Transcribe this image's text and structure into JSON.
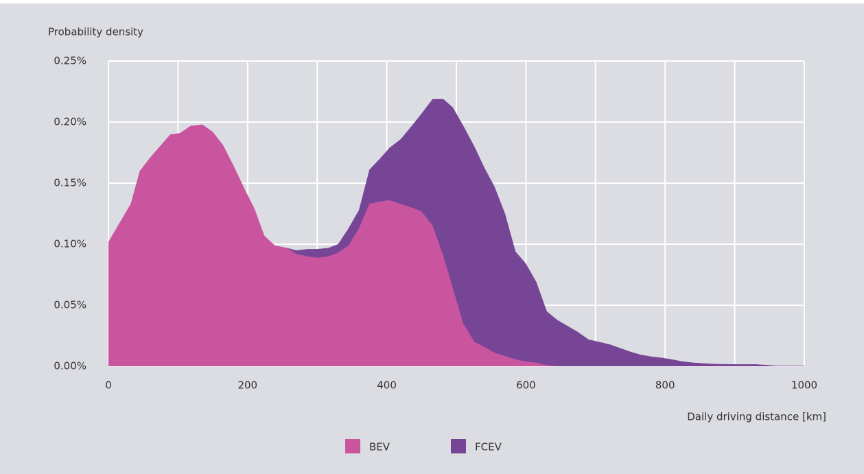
{
  "chart_data": {
    "type": "area",
    "y_label": "Probability density",
    "x_label": "Daily driving distance [km]",
    "xlim": [
      0,
      1000
    ],
    "xticks": [
      0,
      200,
      400,
      600,
      800,
      1000
    ],
    "xgrid": [
      0,
      100,
      200,
      300,
      400,
      500,
      600,
      700,
      800,
      900,
      1000
    ],
    "ylim": [
      0,
      0.25
    ],
    "yticks": [
      {
        "value": 0,
        "label": "0.00%"
      },
      {
        "value": 0.05,
        "label": "0.05%"
      },
      {
        "value": 0.1,
        "label": "0.10%"
      },
      {
        "value": 0.15,
        "label": "0.15%"
      },
      {
        "value": 0.2,
        "label": "0.20%"
      },
      {
        "value": 0.25,
        "label": "0.25%"
      }
    ],
    "grid": true,
    "legend": "bottom",
    "series": [
      {
        "name": "BEV",
        "color": "#c9559f",
        "x": [
          0,
          32,
          45,
          60,
          89,
          103,
          118,
          135,
          150,
          165,
          181,
          195,
          210,
          224,
          239,
          256,
          270,
          286,
          300,
          316,
          330,
          345,
          360,
          375,
          390,
          404,
          420,
          436,
          450,
          466,
          481,
          495,
          510,
          526,
          540,
          555,
          570,
          585,
          600,
          615,
          630,
          645
        ],
        "values": [
          0.102,
          0.133,
          0.16,
          0.171,
          0.19,
          0.191,
          0.197,
          0.198,
          0.192,
          0.181,
          0.163,
          0.146,
          0.129,
          0.107,
          0.099,
          0.097,
          0.092,
          0.09,
          0.089,
          0.09,
          0.093,
          0.099,
          0.113,
          0.133,
          0.135,
          0.136,
          0.133,
          0.13,
          0.127,
          0.115,
          0.091,
          0.064,
          0.035,
          0.02,
          0.016,
          0.011,
          0.0085,
          0.0056,
          0.004,
          0.003,
          0.001,
          0
        ]
      },
      {
        "name": "FCEV",
        "color": "#764596",
        "x": [
          239,
          256,
          270,
          286,
          300,
          316,
          330,
          345,
          360,
          375,
          390,
          404,
          420,
          436,
          450,
          466,
          481,
          495,
          510,
          526,
          540,
          555,
          570,
          585,
          600,
          615,
          630,
          645,
          660,
          675,
          690,
          705,
          720,
          735,
          750,
          765,
          780,
          795,
          810,
          825,
          840,
          870,
          900,
          930,
          960,
          1000
        ],
        "values": [
          0.099,
          0.097,
          0.095,
          0.096,
          0.096,
          0.097,
          0.1,
          0.113,
          0.128,
          0.161,
          0.17,
          0.179,
          0.186,
          0.197,
          0.207,
          0.219,
          0.219,
          0.212,
          0.197,
          0.18,
          0.163,
          0.147,
          0.125,
          0.094,
          0.084,
          0.069,
          0.045,
          0.038,
          0.033,
          0.028,
          0.022,
          0.02,
          0.018,
          0.015,
          0.012,
          0.0095,
          0.008,
          0.007,
          0.0056,
          0.004,
          0.003,
          0.002,
          0.0017,
          0.0017,
          0.0005,
          0.0005
        ]
      }
    ]
  }
}
